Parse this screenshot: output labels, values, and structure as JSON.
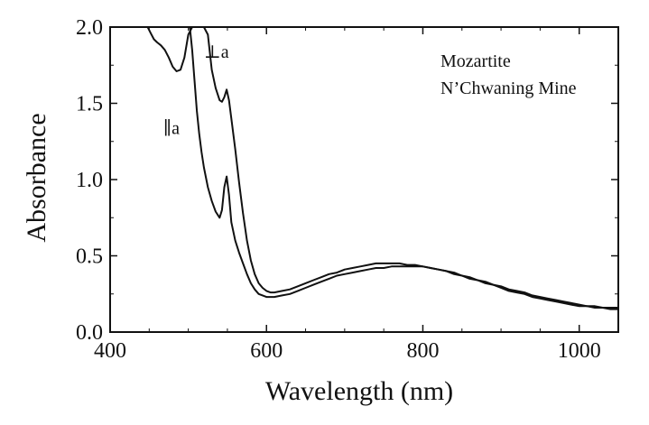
{
  "chart_data": {
    "type": "line",
    "title": "",
    "xlabel": "Wavelength (nm)",
    "ylabel": "Absorbance",
    "xlim": [
      400,
      1050
    ],
    "ylim": [
      0.0,
      2.0
    ],
    "x_ticks": [
      400,
      600,
      800,
      1000
    ],
    "x_tick_labels": [
      "400",
      "600",
      "800",
      "1000"
    ],
    "y_ticks": [
      0.0,
      0.5,
      1.0,
      1.5,
      2.0
    ],
    "y_tick_labels": [
      "0.0",
      "0.5",
      "1.0",
      "1.5",
      "2.0"
    ],
    "grid": false,
    "annotation": [
      "Mozartite",
      "N’Chwaning Mine"
    ],
    "series": [
      {
        "name": "⊥a",
        "color": "#111111",
        "label_at": [
          520,
          1.8
        ],
        "x": [
          448,
          452,
          456,
          460,
          465,
          470,
          475,
          480,
          485,
          490,
          495,
          500,
          505,
          510,
          515,
          520,
          525,
          530,
          535,
          540,
          543,
          546,
          549,
          552,
          555,
          560,
          565,
          570,
          575,
          580,
          585,
          590,
          595,
          600,
          605,
          610,
          620,
          630,
          640,
          650,
          660,
          670,
          680,
          690,
          700,
          710,
          720,
          730,
          740,
          750,
          760,
          770,
          780,
          790,
          800,
          810,
          820,
          830,
          840,
          850,
          860,
          870,
          880,
          890,
          900,
          910,
          920,
          930,
          940,
          950,
          960,
          970,
          980,
          990,
          1000,
          1010,
          1020,
          1030,
          1040,
          1050
        ],
        "y": [
          2.0,
          1.96,
          1.92,
          1.9,
          1.88,
          1.85,
          1.8,
          1.74,
          1.71,
          1.72,
          1.8,
          1.95,
          2.0,
          2.0,
          2.0,
          2.0,
          1.95,
          1.72,
          1.6,
          1.52,
          1.51,
          1.54,
          1.59,
          1.52,
          1.4,
          1.2,
          0.98,
          0.78,
          0.6,
          0.47,
          0.38,
          0.32,
          0.29,
          0.27,
          0.26,
          0.26,
          0.27,
          0.28,
          0.3,
          0.32,
          0.34,
          0.36,
          0.38,
          0.39,
          0.41,
          0.42,
          0.43,
          0.44,
          0.45,
          0.45,
          0.45,
          0.45,
          0.44,
          0.44,
          0.43,
          0.42,
          0.41,
          0.4,
          0.38,
          0.37,
          0.35,
          0.34,
          0.32,
          0.31,
          0.29,
          0.27,
          0.26,
          0.25,
          0.23,
          0.22,
          0.21,
          0.2,
          0.19,
          0.18,
          0.17,
          0.17,
          0.16,
          0.16,
          0.15,
          0.15
        ]
      },
      {
        "name": "∥a",
        "color": "#111111",
        "label_at": [
          468,
          1.3
        ],
        "x": [
          502,
          505,
          508,
          511,
          514,
          517,
          520,
          525,
          530,
          535,
          540,
          543,
          546,
          549,
          552,
          555,
          560,
          565,
          570,
          575,
          580,
          585,
          590,
          595,
          600,
          605,
          610,
          620,
          630,
          640,
          650,
          660,
          670,
          680,
          690,
          700,
          710,
          720,
          730,
          740,
          750,
          760,
          770,
          780,
          790,
          800,
          810,
          820,
          830,
          840,
          850,
          860,
          870,
          880,
          890,
          900,
          910,
          920,
          930,
          940,
          950,
          960,
          970,
          980,
          990,
          1000,
          1010,
          1020,
          1030,
          1040,
          1050
        ],
        "y": [
          2.0,
          1.85,
          1.65,
          1.45,
          1.3,
          1.18,
          1.08,
          0.95,
          0.86,
          0.79,
          0.75,
          0.8,
          0.95,
          1.02,
          0.9,
          0.72,
          0.6,
          0.52,
          0.45,
          0.38,
          0.32,
          0.28,
          0.25,
          0.24,
          0.23,
          0.23,
          0.23,
          0.24,
          0.25,
          0.27,
          0.29,
          0.31,
          0.33,
          0.35,
          0.37,
          0.38,
          0.39,
          0.4,
          0.41,
          0.42,
          0.42,
          0.43,
          0.43,
          0.43,
          0.43,
          0.43,
          0.42,
          0.41,
          0.4,
          0.39,
          0.37,
          0.36,
          0.34,
          0.33,
          0.31,
          0.3,
          0.28,
          0.27,
          0.26,
          0.24,
          0.23,
          0.22,
          0.21,
          0.2,
          0.19,
          0.18,
          0.17,
          0.17,
          0.16,
          0.16,
          0.16
        ]
      }
    ]
  }
}
